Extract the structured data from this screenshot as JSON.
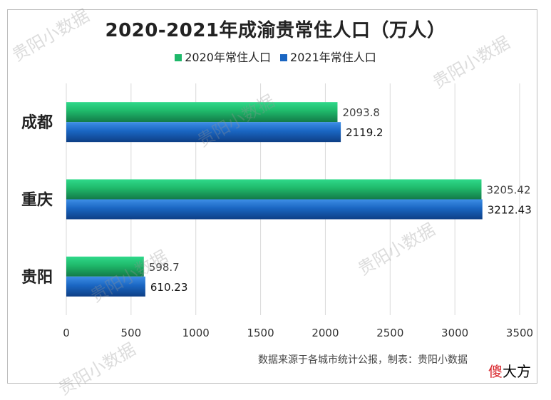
{
  "title": "2020-2021年成渝贵常住人口（万人）",
  "source_note": "数据来源于各城市统计公报，制表：贵阳小数据",
  "watermark": "贵阳小数据",
  "corner_logo": {
    "first": "傻",
    "rest": "大方"
  },
  "colors": {
    "series_2020": "#1fb86a",
    "series_2021": "#1a66c2",
    "grid": "#d9d9d9"
  },
  "chart_data": {
    "type": "bar",
    "orientation": "horizontal",
    "title": "2020-2021年成渝贵常住人口（万人）",
    "categories": [
      "成都",
      "重庆",
      "贵阳"
    ],
    "series": [
      {
        "name": "2020年常住人口",
        "values": [
          2093.8,
          3205.42,
          598.7
        ],
        "labels": [
          "2093.8",
          "3205.42",
          "598.7"
        ]
      },
      {
        "name": "2021年常住人口",
        "values": [
          2119.2,
          3212.43,
          610.23
        ],
        "labels": [
          "2119.2",
          "3212.43",
          "610.23"
        ]
      }
    ],
    "xlim": [
      0,
      3500
    ],
    "xticks": [
      "0",
      "500",
      "1000",
      "1500",
      "2000",
      "2500",
      "3000",
      "3500"
    ],
    "grid": "vertical",
    "legend_position": "top"
  }
}
